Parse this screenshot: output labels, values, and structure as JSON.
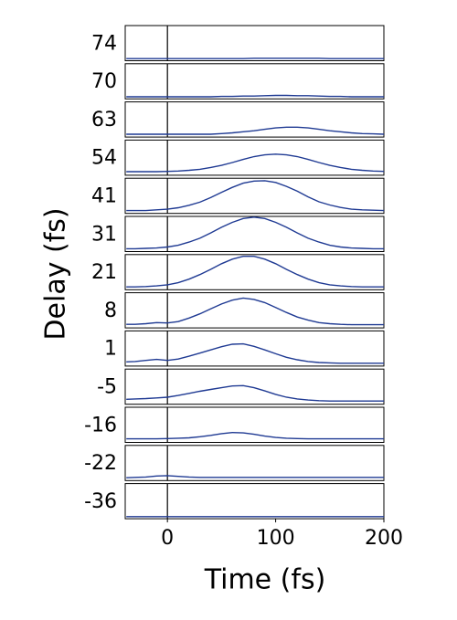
{
  "chart_data": {
    "type": "line",
    "xlabel": "Time (fs)",
    "ylabel": "Delay (fs)",
    "xlim": [
      -39,
      200
    ],
    "xticks": [
      0,
      100,
      200
    ],
    "ylim": [
      0,
      1
    ],
    "vlines": [
      0
    ],
    "x": [
      -38,
      -30,
      -20,
      -10,
      0,
      10,
      20,
      30,
      40,
      50,
      60,
      70,
      80,
      90,
      100,
      110,
      120,
      130,
      140,
      150,
      160,
      170,
      180,
      190,
      200
    ],
    "series": [
      {
        "name": "74",
        "color": "#1f3a93",
        "values": [
          0.06,
          0.06,
          0.06,
          0.06,
          0.06,
          0.06,
          0.06,
          0.06,
          0.06,
          0.06,
          0.06,
          0.06,
          0.07,
          0.07,
          0.07,
          0.07,
          0.07,
          0.07,
          0.07,
          0.06,
          0.06,
          0.06,
          0.06,
          0.06,
          0.06
        ]
      },
      {
        "name": "70",
        "color": "#1f3a93",
        "values": [
          0.06,
          0.06,
          0.06,
          0.06,
          0.06,
          0.06,
          0.06,
          0.06,
          0.06,
          0.07,
          0.07,
          0.08,
          0.08,
          0.09,
          0.1,
          0.1,
          0.09,
          0.09,
          0.08,
          0.07,
          0.07,
          0.06,
          0.06,
          0.06,
          0.06
        ]
      },
      {
        "name": "63",
        "color": "#1f3a93",
        "values": [
          0.08,
          0.08,
          0.08,
          0.08,
          0.08,
          0.08,
          0.08,
          0.08,
          0.08,
          0.1,
          0.12,
          0.15,
          0.18,
          0.22,
          0.26,
          0.28,
          0.28,
          0.26,
          0.22,
          0.18,
          0.15,
          0.12,
          0.1,
          0.09,
          0.08
        ]
      },
      {
        "name": "54",
        "color": "#1f3a93",
        "values": [
          0.1,
          0.1,
          0.1,
          0.1,
          0.11,
          0.12,
          0.14,
          0.17,
          0.22,
          0.28,
          0.36,
          0.45,
          0.53,
          0.58,
          0.6,
          0.58,
          0.53,
          0.45,
          0.36,
          0.28,
          0.22,
          0.17,
          0.14,
          0.12,
          0.11
        ]
      },
      {
        "name": "41",
        "color": "#1f3a93",
        "values": [
          0.08,
          0.08,
          0.08,
          0.1,
          0.12,
          0.16,
          0.23,
          0.32,
          0.45,
          0.6,
          0.74,
          0.86,
          0.92,
          0.93,
          0.88,
          0.77,
          0.63,
          0.47,
          0.33,
          0.24,
          0.17,
          0.12,
          0.1,
          0.09,
          0.08
        ]
      },
      {
        "name": "31",
        "color": "#1f3a93",
        "values": [
          0.08,
          0.08,
          0.09,
          0.1,
          0.13,
          0.18,
          0.27,
          0.38,
          0.53,
          0.69,
          0.83,
          0.94,
          0.98,
          0.94,
          0.83,
          0.69,
          0.53,
          0.38,
          0.27,
          0.18,
          0.13,
          0.1,
          0.09,
          0.08,
          0.08
        ]
      },
      {
        "name": "21",
        "color": "#1f3a93",
        "values": [
          0.08,
          0.08,
          0.09,
          0.11,
          0.14,
          0.2,
          0.3,
          0.43,
          0.58,
          0.74,
          0.87,
          0.95,
          0.95,
          0.87,
          0.74,
          0.58,
          0.43,
          0.3,
          0.2,
          0.14,
          0.11,
          0.09,
          0.08,
          0.08,
          0.08
        ]
      },
      {
        "name": "8",
        "color": "#1f3a93",
        "values": [
          0.1,
          0.1,
          0.12,
          0.15,
          0.14,
          0.18,
          0.28,
          0.4,
          0.54,
          0.68,
          0.79,
          0.85,
          0.81,
          0.72,
          0.58,
          0.44,
          0.31,
          0.22,
          0.15,
          0.12,
          0.1,
          0.09,
          0.09,
          0.09,
          0.09
        ]
      },
      {
        "name": "1",
        "color": "#1f3a93",
        "values": [
          0.12,
          0.13,
          0.16,
          0.19,
          0.16,
          0.2,
          0.28,
          0.37,
          0.46,
          0.55,
          0.62,
          0.63,
          0.56,
          0.46,
          0.35,
          0.25,
          0.18,
          0.13,
          0.1,
          0.09,
          0.08,
          0.08,
          0.08,
          0.08,
          0.08
        ]
      },
      {
        "name": "-5",
        "color": "#1f3a93",
        "values": [
          0.14,
          0.15,
          0.16,
          0.18,
          0.2,
          0.25,
          0.31,
          0.37,
          0.42,
          0.47,
          0.52,
          0.53,
          0.47,
          0.38,
          0.28,
          0.2,
          0.15,
          0.12,
          0.1,
          0.09,
          0.09,
          0.09,
          0.09,
          0.09,
          0.09
        ]
      },
      {
        "name": "-16",
        "color": "#1f3a93",
        "values": [
          0.1,
          0.1,
          0.1,
          0.1,
          0.11,
          0.12,
          0.13,
          0.16,
          0.2,
          0.25,
          0.28,
          0.27,
          0.23,
          0.18,
          0.14,
          0.12,
          0.11,
          0.1,
          0.1,
          0.1,
          0.1,
          0.1,
          0.1,
          0.1,
          0.1
        ]
      },
      {
        "name": "-22",
        "color": "#1f3a93",
        "values": [
          0.08,
          0.09,
          0.1,
          0.13,
          0.14,
          0.12,
          0.1,
          0.09,
          0.09,
          0.09,
          0.09,
          0.09,
          0.09,
          0.09,
          0.09,
          0.09,
          0.09,
          0.09,
          0.09,
          0.09,
          0.09,
          0.09,
          0.09,
          0.09,
          0.09
        ]
      },
      {
        "name": "-36",
        "color": "#1f3a93",
        "values": [
          0.06,
          0.06,
          0.06,
          0.06,
          0.06,
          0.06,
          0.06,
          0.06,
          0.06,
          0.06,
          0.06,
          0.06,
          0.06,
          0.06,
          0.06,
          0.06,
          0.06,
          0.06,
          0.06,
          0.06,
          0.06,
          0.06,
          0.06,
          0.06,
          0.06
        ]
      }
    ]
  }
}
